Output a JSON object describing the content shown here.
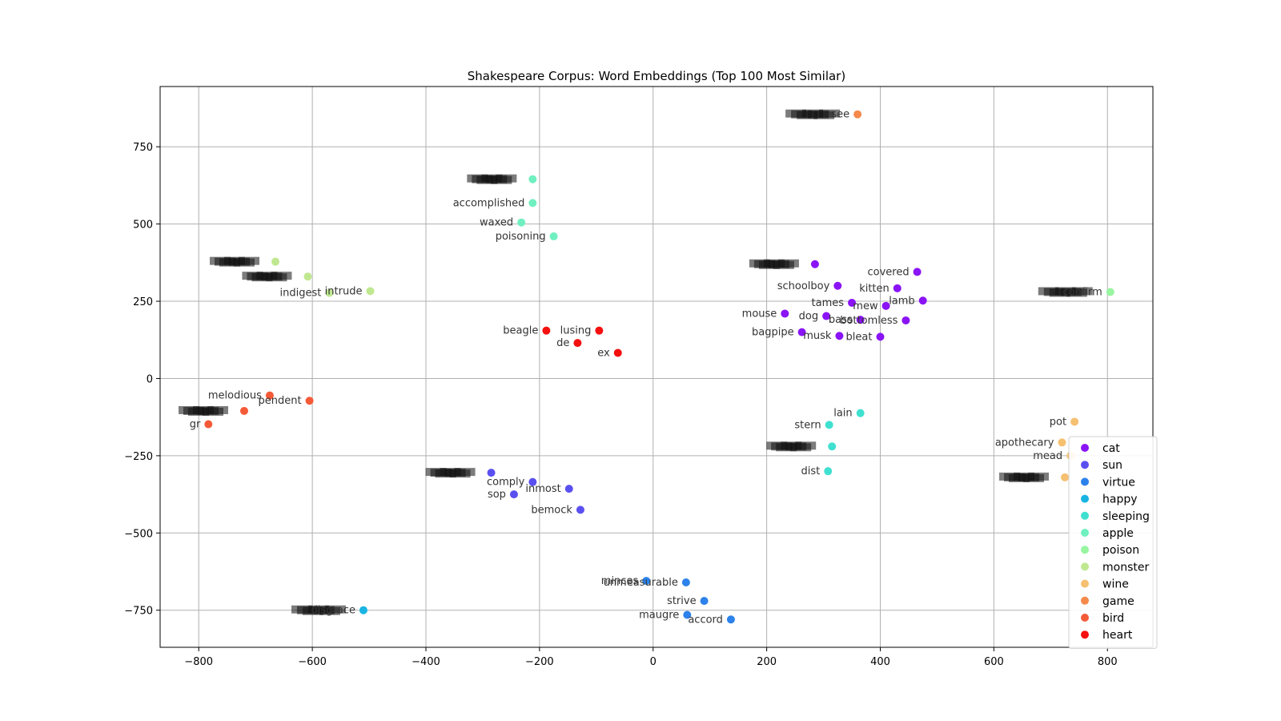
{
  "chart_data": {
    "type": "scatter",
    "title": "Shakespeare Corpus: Word Embeddings (Top 100 Most Similar)",
    "xlabel": "",
    "ylabel": "",
    "xlim": [
      -868,
      880
    ],
    "ylim": [
      -870,
      945
    ],
    "x_ticks": [
      -800,
      -600,
      -400,
      -200,
      0,
      200,
      400,
      600,
      800
    ],
    "y_ticks": [
      -750,
      -500,
      -250,
      0,
      250,
      500,
      750
    ],
    "grid": true,
    "legend_position": "lower-right",
    "series": [
      {
        "name": "cat",
        "color": "#8a14f5",
        "points": [
          {
            "x": 285,
            "y": 370,
            "label": ""
          },
          {
            "x": 325,
            "y": 300,
            "label": "schoolboy"
          },
          {
            "x": 465,
            "y": 345,
            "label": "covered"
          },
          {
            "x": 430,
            "y": 292,
            "label": "kitten"
          },
          {
            "x": 475,
            "y": 252,
            "label": "lamb"
          },
          {
            "x": 350,
            "y": 245,
            "label": "tames"
          },
          {
            "x": 410,
            "y": 235,
            "label": "mew"
          },
          {
            "x": 232,
            "y": 210,
            "label": "mouse"
          },
          {
            "x": 305,
            "y": 202,
            "label": "dog"
          },
          {
            "x": 365,
            "y": 190,
            "label": "bass"
          },
          {
            "x": 445,
            "y": 188,
            "label": "bottomless"
          },
          {
            "x": 262,
            "y": 150,
            "label": "bagpipe"
          },
          {
            "x": 328,
            "y": 138,
            "label": "musk"
          },
          {
            "x": 400,
            "y": 135,
            "label": "bleat"
          }
        ]
      },
      {
        "name": "sun",
        "color": "#5a50f0",
        "points": [
          {
            "x": -285,
            "y": -305,
            "label": ""
          },
          {
            "x": -212,
            "y": -335,
            "label": "comply"
          },
          {
            "x": -148,
            "y": -357,
            "label": "inmost"
          },
          {
            "x": -245,
            "y": -375,
            "label": "sop"
          },
          {
            "x": -128,
            "y": -425,
            "label": "bemock"
          }
        ]
      },
      {
        "name": "virtue",
        "color": "#2c82ea",
        "points": [
          {
            "x": -12,
            "y": -655,
            "label": "minces"
          },
          {
            "x": 58,
            "y": -660,
            "label": "unmeasurable"
          },
          {
            "x": 90,
            "y": -720,
            "label": "strive"
          },
          {
            "x": 60,
            "y": -765,
            "label": "maugre"
          },
          {
            "x": 137,
            "y": -780,
            "label": "accord"
          }
        ]
      },
      {
        "name": "happy",
        "color": "#1ab4e2",
        "points": [
          {
            "x": -510,
            "y": -750,
            "label": "disgrace"
          }
        ]
      },
      {
        "name": "sleeping",
        "color": "#40e0d0",
        "points": [
          {
            "x": 365,
            "y": -112,
            "label": "lain"
          },
          {
            "x": 310,
            "y": -150,
            "label": "stern"
          },
          {
            "x": 315,
            "y": -220,
            "label": ""
          },
          {
            "x": 308,
            "y": -300,
            "label": "dist"
          }
        ]
      },
      {
        "name": "apple",
        "color": "#70f0c0",
        "points": [
          {
            "x": -212,
            "y": 645,
            "label": ""
          },
          {
            "x": -212,
            "y": 568,
            "label": "accomplished"
          },
          {
            "x": -232,
            "y": 505,
            "label": "waxed"
          },
          {
            "x": -175,
            "y": 460,
            "label": "poisoning"
          }
        ]
      },
      {
        "name": "poison",
        "color": "#98f5a0",
        "points": [
          {
            "x": 805,
            "y": 280,
            "label": "confirm"
          }
        ]
      },
      {
        "name": "monster",
        "color": "#c0e890",
        "points": [
          {
            "x": -665,
            "y": 378,
            "label": ""
          },
          {
            "x": -608,
            "y": 330,
            "label": ""
          },
          {
            "x": -498,
            "y": 283,
            "label": "intrude"
          },
          {
            "x": -570,
            "y": 277,
            "label": "indigest"
          }
        ]
      },
      {
        "name": "wine",
        "color": "#f5c070",
        "points": [
          {
            "x": 742,
            "y": -140,
            "label": "pot"
          },
          {
            "x": 720,
            "y": -207,
            "label": "apothecary"
          },
          {
            "x": 735,
            "y": -250,
            "label": "mead"
          },
          {
            "x": 725,
            "y": -320,
            "label": ""
          }
        ]
      },
      {
        "name": "game",
        "color": "#f58a4a",
        "points": [
          {
            "x": 360,
            "y": 855,
            "label": "see"
          }
        ]
      },
      {
        "name": "bird",
        "color": "#f55a38",
        "points": [
          {
            "x": -675,
            "y": -55,
            "label": "melodious"
          },
          {
            "x": -605,
            "y": -72,
            "label": "pendent"
          },
          {
            "x": -720,
            "y": -105,
            "label": ""
          },
          {
            "x": -783,
            "y": -148,
            "label": "gr"
          }
        ]
      },
      {
        "name": "heart",
        "color": "#f51010",
        "points": [
          {
            "x": -95,
            "y": 155,
            "label": "lusing"
          },
          {
            "x": -188,
            "y": 155,
            "label": "beagle"
          },
          {
            "x": -133,
            "y": 115,
            "label": "de"
          },
          {
            "x": -62,
            "y": 83,
            "label": "ex"
          }
        ]
      }
    ]
  }
}
